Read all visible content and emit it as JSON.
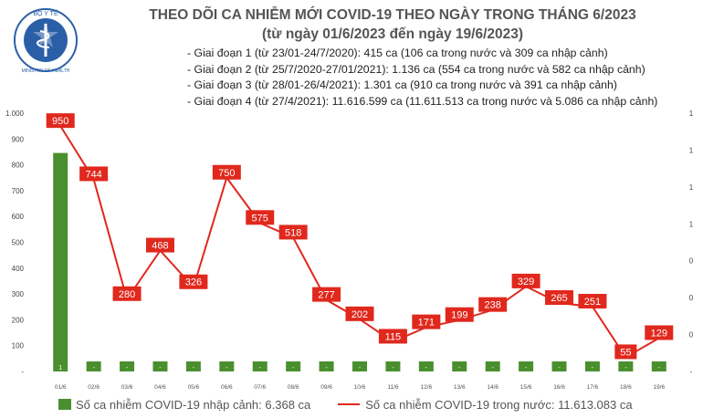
{
  "header": {
    "logo_text_top": "BỘ Y TẾ",
    "logo_text_bottom": "MINISTRY OF HEALTH",
    "title": "THEO DÕI CA NHIỄM MỚI COVID-19 THEO NGÀY TRONG THÁNG 6/2023",
    "subtitle": "(từ ngày 01/6/2023 đến ngày 19/6/2023)"
  },
  "notes": [
    "- Giai đoạn 1 (từ 23/01-24/7/2020): 415 ca (106 ca trong nước và 309 ca nhập cảnh)",
    "- Giai đoạn 2 (từ 25/7/2020-27/01/2021): 1.136 ca (554 ca trong nước và 582 ca nhập cảnh)",
    "- Giai đoạn 3 (từ 28/01-26/4/2021): 1.301 ca (910 ca trong nước và 391 ca nhập cảnh)",
    "- Giai đoạn 4 (từ 27/4/2021): 11.616.599 ca (11.611.513 ca trong nước và 5.086 ca nhập cảnh)"
  ],
  "legend": {
    "bar_label": "Số ca nhiễm COVID-19 nhập cảnh: 6.368 ca",
    "line_label": "Số ca nhiễm COVID-19 trong nước: 11.613.083 ca"
  },
  "colors": {
    "bar": "#4a8f2e",
    "line": "#e0281d",
    "label_bg": "#e0281d"
  },
  "chart_data": {
    "type": "bar+line",
    "categories": [
      "01/6",
      "02/6",
      "03/6",
      "04/6",
      "05/6",
      "06/6",
      "07/6",
      "08/6",
      "09/6",
      "10/6",
      "11/6",
      "12/6",
      "13/6",
      "14/6",
      "15/6",
      "16/6",
      "17/6",
      "18/6",
      "19/6"
    ],
    "left_axis": {
      "ylim": [
        0,
        1000
      ],
      "ticks": [
        "-",
        "100",
        "200",
        "300",
        "400",
        "500",
        "600",
        "700",
        "800",
        "900",
        "1.000"
      ]
    },
    "right_axis": {
      "ticks": [
        "-",
        "0",
        "0",
        "0",
        "1",
        "1",
        "1",
        "1"
      ]
    },
    "series": [
      {
        "name": "Số ca nhiễm COVID-19 nhập cảnh",
        "type": "bar",
        "axis": "right",
        "values": [
          1,
          0,
          0,
          0,
          0,
          0,
          0,
          0,
          0,
          0,
          0,
          0,
          0,
          0,
          0,
          0,
          0,
          0,
          0
        ],
        "labels": [
          "1",
          "-",
          "-",
          "-",
          "-",
          "-",
          "-",
          "-",
          "-",
          "-",
          "-",
          "-",
          "-",
          "-",
          "-",
          "-",
          "-",
          "-",
          "-"
        ]
      },
      {
        "name": "Số ca nhiễm COVID-19 trong nước",
        "type": "line",
        "axis": "left",
        "values": [
          950,
          744,
          280,
          468,
          326,
          750,
          575,
          518,
          277,
          202,
          115,
          171,
          199,
          238,
          329,
          265,
          251,
          55,
          129
        ]
      }
    ]
  }
}
